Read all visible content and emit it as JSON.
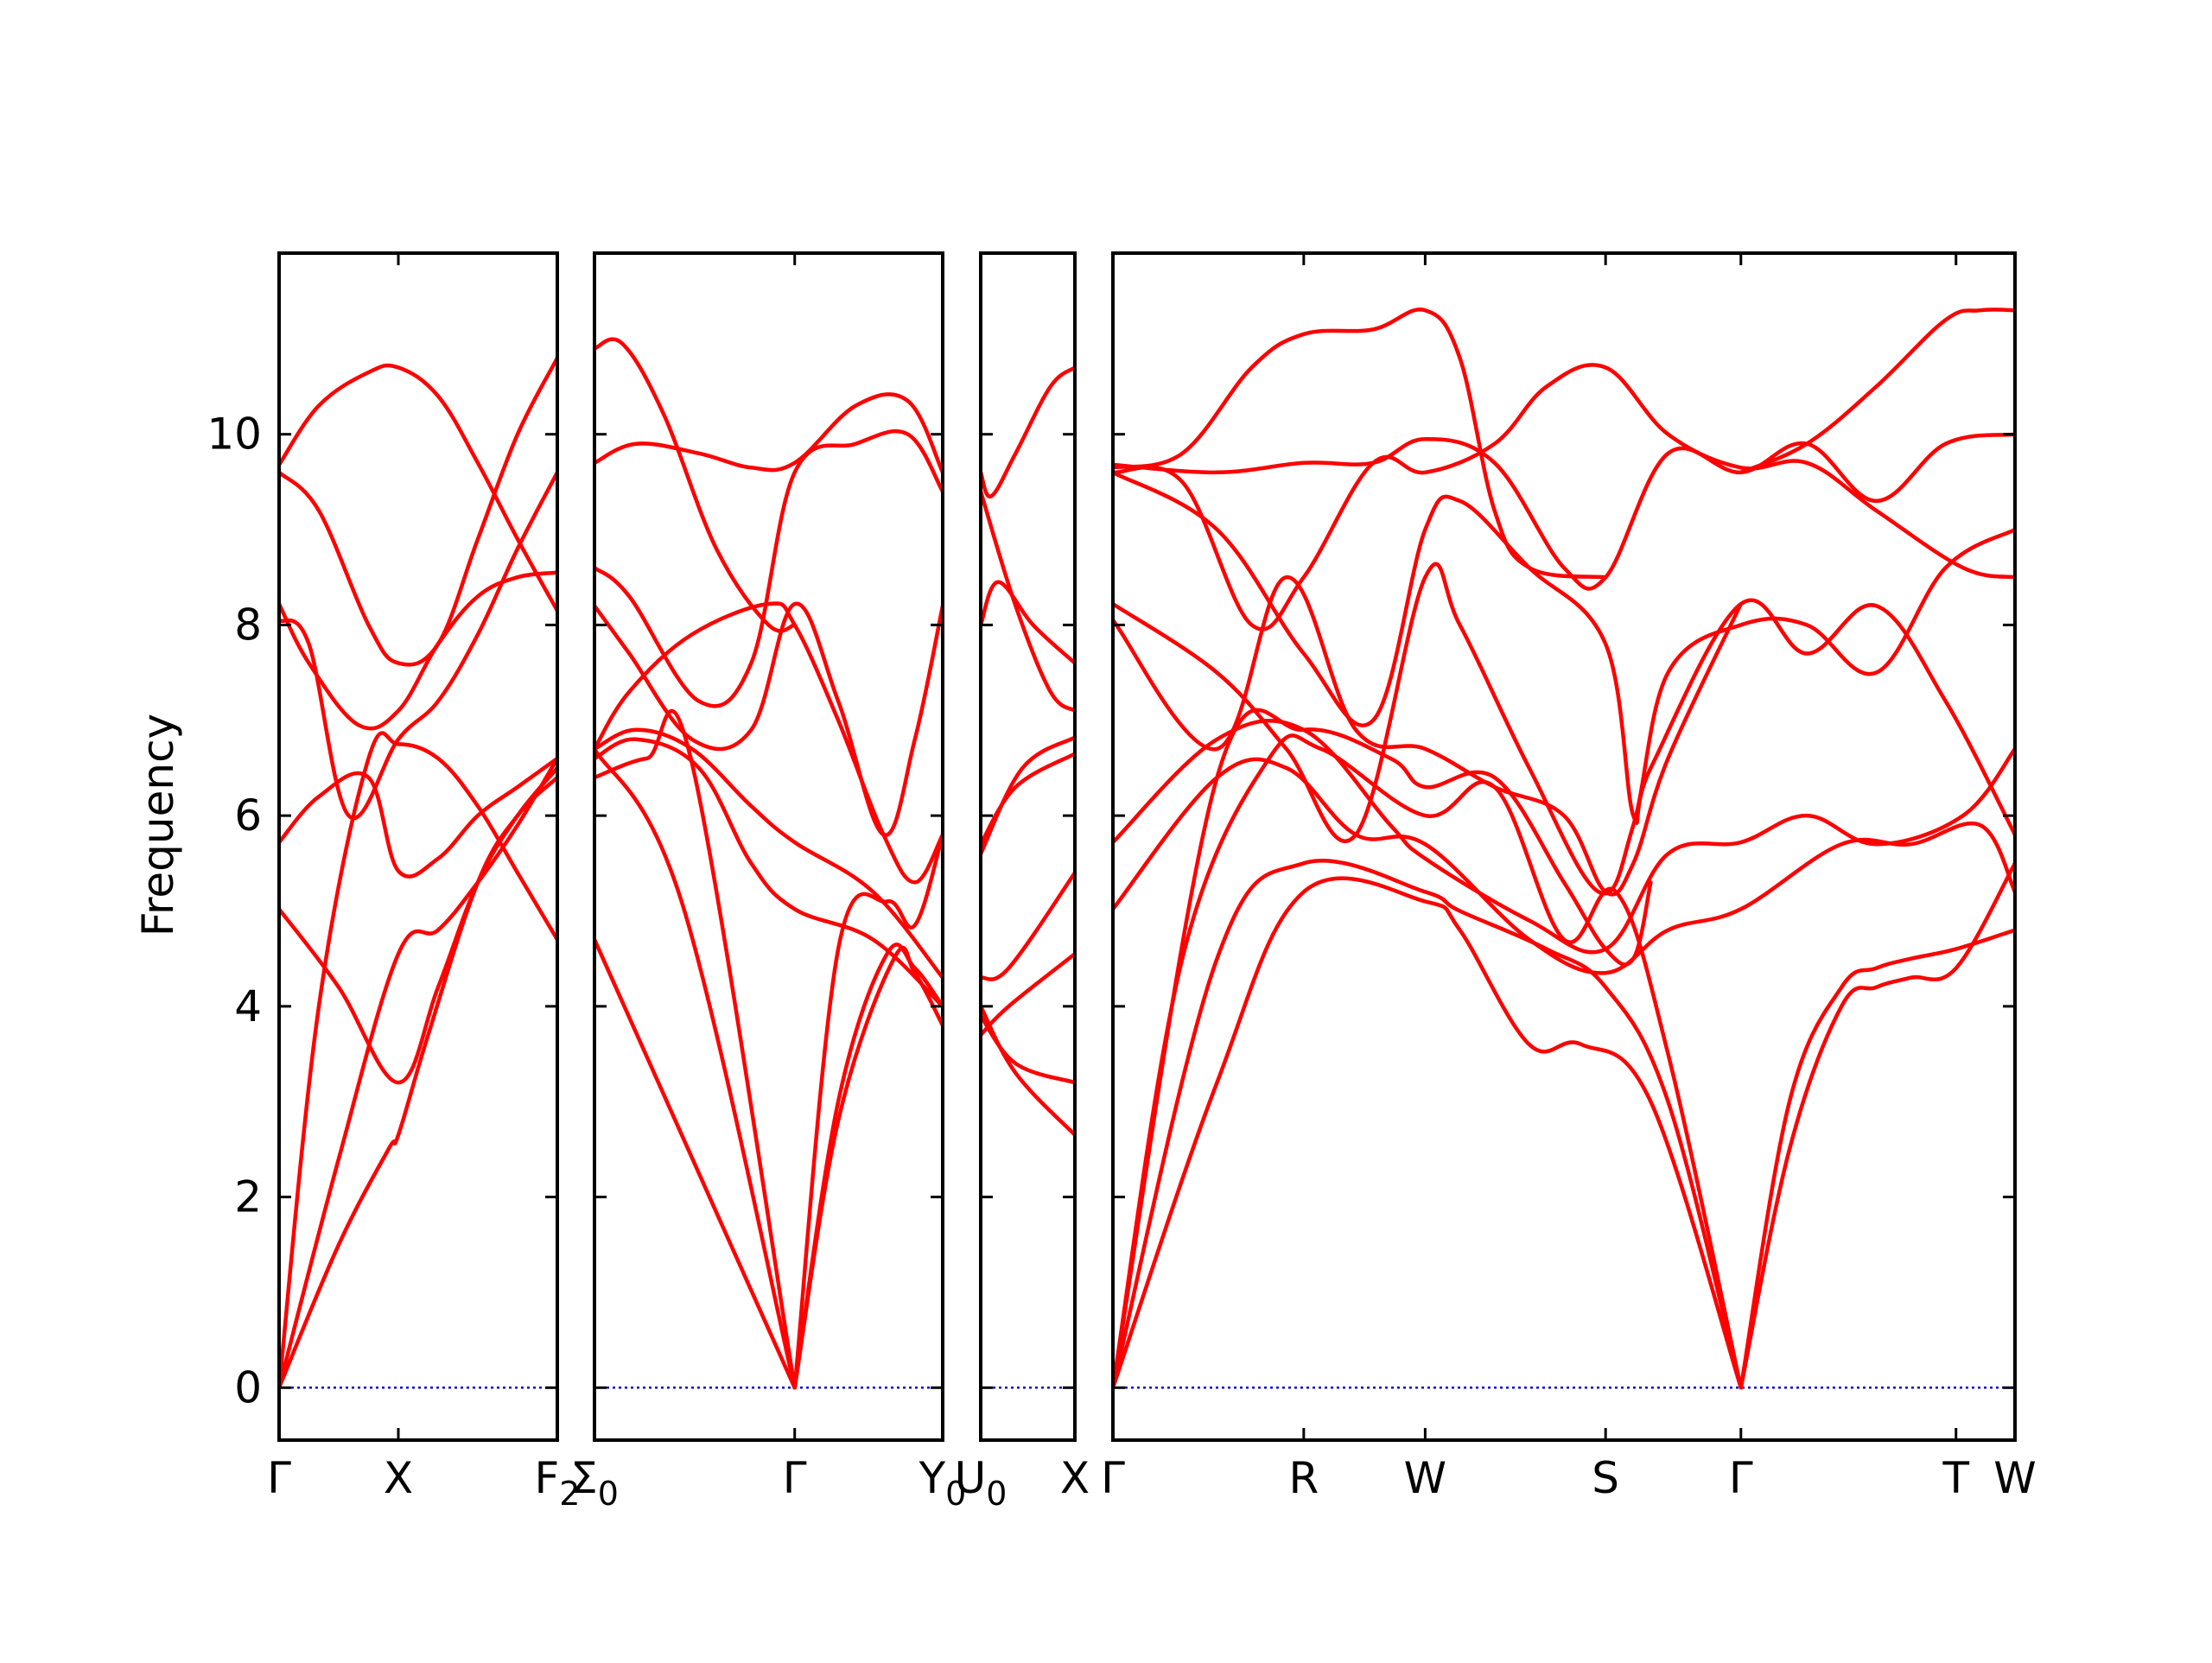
{
  "chart_data": {
    "type": "line",
    "title": "",
    "ylabel": "Frequency",
    "ylim": [
      -0.55,
      11.9
    ],
    "yticks": [
      0,
      2,
      4,
      6,
      8,
      10
    ],
    "colors": {
      "band": "#ff0000",
      "zero": "#0000cc"
    },
    "grid": false,
    "panels": [
      {
        "xlim": [
          0,
          1.4
        ],
        "xticks": [
          {
            "x": 0,
            "label": "Γ"
          },
          {
            "x": 0.6,
            "label": "X"
          },
          {
            "x": 1.4,
            "label": "F",
            "sub": "2"
          }
        ],
        "series": [
          {
            "x": [
              0,
              0.3,
              0.55,
              0.6,
              0.75,
              1.0,
              1.2,
              1.4
            ],
            "y": [
              0,
              1.5,
              2.5,
              2.65,
              3.7,
              5.3,
              6.0,
              6.4
            ]
          },
          {
            "x": [
              0,
              0.3,
              0.6,
              0.8,
              1.0,
              1.2,
              1.4
            ],
            "y": [
              0,
              2.4,
              4.55,
              4.8,
              5.3,
              5.9,
              6.6
            ]
          },
          {
            "x": [
              0,
              0.2,
              0.45,
              0.6,
              0.8,
              1.0,
              1.2,
              1.4
            ],
            "y": [
              0,
              4.0,
              6.6,
              6.75,
              6.6,
              6.1,
              5.4,
              4.7
            ]
          },
          {
            "x": [
              0,
              0.3,
              0.6,
              0.8,
              1.0,
              1.2,
              1.4
            ],
            "y": [
              5.02,
              4.2,
              3.2,
              4.2,
              5.3,
              6.0,
              6.5
            ]
          },
          {
            "x": [
              0,
              0.2,
              0.45,
              0.6,
              0.8,
              1.0,
              1.2,
              1.4
            ],
            "y": [
              5.72,
              6.2,
              6.4,
              5.42,
              5.55,
              6.0,
              6.3,
              6.6
            ]
          },
          {
            "x": [
              0,
              0.15,
              0.35,
              0.6,
              0.8,
              1.0,
              1.2,
              1.4
            ],
            "y": [
              8.05,
              7.8,
              6.0,
              6.8,
              7.2,
              7.9,
              8.8,
              9.6
            ]
          },
          {
            "x": [
              0,
              0.15,
              0.4,
              0.6,
              0.8,
              1.0,
              1.2,
              1.4
            ],
            "y": [
              8.22,
              7.6,
              6.95,
              7.1,
              7.8,
              8.3,
              8.5,
              8.55
            ]
          },
          {
            "x": [
              0,
              0.2,
              0.45,
              0.6,
              0.8,
              1.0,
              1.2,
              1.4
            ],
            "y": [
              9.6,
              9.2,
              8.0,
              7.6,
              7.8,
              8.9,
              10.0,
              10.8
            ]
          },
          {
            "x": [
              0,
              0.2,
              0.45,
              0.6,
              0.8,
              1.0,
              1.2,
              1.4
            ],
            "y": [
              9.68,
              10.3,
              10.65,
              10.7,
              10.4,
              9.7,
              8.9,
              8.15
            ]
          }
        ]
      },
      {
        "xlim": [
          0,
          1.0
        ],
        "xticks": [
          {
            "x": 0,
            "label": "Σ",
            "sub": "0"
          },
          {
            "x": 0.575,
            "label": "Γ"
          },
          {
            "x": 1.0,
            "label": "Y",
            "sub": "0"
          }
        ],
        "series": [
          {
            "x": [
              0,
              0.575
            ],
            "y": [
              4.7,
              0
            ]
          },
          {
            "x": [
              0,
              0.25,
              0.575
            ],
            "y": [
              6.7,
              5.1,
              0
            ]
          },
          {
            "x": [
              0,
              0.15,
              0.28,
              0.575
            ],
            "y": [
              6.4,
              6.6,
              6.55,
              0
            ]
          },
          {
            "x": [
              0.575,
              0.7,
              0.86,
              0.92,
              1.0
            ],
            "y": [
              0,
              2.8,
              4.5,
              4.35,
              3.8
            ]
          },
          {
            "x": [
              0.575,
              0.7,
              0.84,
              0.92,
              1.0
            ],
            "y": [
              0,
              3.0,
              4.55,
              4.4,
              4.0
            ]
          },
          {
            "x": [
              0.575,
              0.7,
              0.84,
              0.92,
              1.0
            ],
            "y": [
              0,
              4.6,
              5.1,
              4.85,
              5.8
            ]
          },
          {
            "x": [
              0,
              0.12,
              0.3,
              0.45,
              0.575,
              0.8,
              1.0
            ],
            "y": [
              6.6,
              6.8,
              6.5,
              5.5,
              5.02,
              4.7,
              4.0
            ]
          },
          {
            "x": [
              0,
              0.12,
              0.28,
              0.45,
              0.575,
              0.8,
              1.0
            ],
            "y": [
              6.7,
              6.9,
              6.7,
              6.1,
              5.72,
              5.2,
              4.3
            ]
          },
          {
            "x": [
              0,
              0.1,
              0.28,
              0.5,
              0.575,
              0.7,
              0.83,
              0.92,
              1.0
            ],
            "y": [
              6.7,
              7.3,
              7.9,
              8.22,
              8.0,
              7.0,
              5.8,
              5.3,
              5.8
            ]
          },
          {
            "x": [
              0,
              0.1,
              0.28,
              0.45,
              0.575,
              0.7,
              0.83,
              0.92,
              1.0
            ],
            "y": [
              8.2,
              7.7,
              6.8,
              6.9,
              8.22,
              7.2,
              5.8,
              6.8,
              8.2
            ]
          },
          {
            "x": [
              0,
              0.1,
              0.3,
              0.45,
              0.575,
              0.75,
              0.9,
              1.0
            ],
            "y": [
              8.6,
              8.3,
              7.2,
              7.6,
              9.6,
              9.9,
              10.0,
              9.4
            ]
          },
          {
            "x": [
              0,
              0.12,
              0.3,
              0.45,
              0.575,
              0.75,
              0.9,
              1.0
            ],
            "y": [
              9.7,
              9.9,
              9.8,
              9.65,
              9.7,
              10.3,
              10.35,
              9.6
            ]
          },
          {
            "x": [
              0,
              0.08,
              0.2,
              0.35,
              0.5,
              0.575
            ],
            "y": [
              10.9,
              10.95,
              10.2,
              8.8,
              8.0,
              8.0
            ]
          }
        ]
      },
      {
        "xlim": [
          0,
          0.27
        ],
        "xticks": [
          {
            "x": 0,
            "label": "U",
            "sub": "0"
          },
          {
            "x": 0.27,
            "label": "X"
          }
        ],
        "series": [
          {
            "x": [
              0,
              0.1,
              0.27
            ],
            "y": [
              4.0,
              3.3,
              2.65
            ]
          },
          {
            "x": [
              0,
              0.1,
              0.27
            ],
            "y": [
              3.9,
              3.4,
              3.2
            ]
          },
          {
            "x": [
              0,
              0.08,
              0.27
            ],
            "y": [
              3.7,
              4.0,
              4.55
            ]
          },
          {
            "x": [
              0,
              0.08,
              0.27
            ],
            "y": [
              4.3,
              4.4,
              5.4
            ]
          },
          {
            "x": [
              0,
              0.1,
              0.27
            ],
            "y": [
              5.7,
              6.3,
              6.65
            ]
          },
          {
            "x": [
              0,
              0.12,
              0.27
            ],
            "y": [
              5.6,
              6.5,
              6.82
            ]
          },
          {
            "x": [
              0,
              0.1,
              0.2,
              0.27
            ],
            "y": [
              9.4,
              8.2,
              7.3,
              7.1
            ]
          },
          {
            "x": [
              0,
              0.05,
              0.15,
              0.27
            ],
            "y": [
              8.0,
              8.45,
              8.0,
              7.6
            ]
          },
          {
            "x": [
              0,
              0.03,
              0.1,
              0.2,
              0.27
            ],
            "y": [
              9.6,
              9.35,
              9.8,
              10.5,
              10.7
            ]
          }
        ]
      },
      {
        "xlim": [
          0,
          2.6
        ],
        "xticks": [
          {
            "x": 0,
            "label": "Γ"
          },
          {
            "x": 0.55,
            "label": "R"
          },
          {
            "x": 0.9,
            "label": "W"
          },
          {
            "x": 1.42,
            "label": "S"
          },
          {
            "x": 1.81,
            "label": "Γ"
          },
          {
            "x": 2.43,
            "label": "T"
          },
          {
            "x": 2.6,
            "label": "W"
          }
        ],
        "series": [
          {
            "x": [
              0,
              0.3,
              0.55,
              0.9,
              1.0,
              1.2,
              1.35,
              1.55,
              1.81
            ],
            "y": [
              0,
              3.2,
              5.2,
              5.1,
              4.8,
              3.6,
              3.6,
              3.0,
              0
            ]
          },
          {
            "x": [
              0,
              0.3,
              0.55,
              0.9,
              1.0,
              1.25,
              1.42,
              1.6,
              1.81
            ],
            "y": [
              0,
              4.5,
              5.5,
              5.2,
              5.0,
              4.6,
              4.2,
              3.0,
              0
            ]
          },
          {
            "x": [
              0,
              0.2,
              0.45,
              0.6,
              0.9,
              1.1,
              1.3,
              1.45,
              1.6,
              1.81
            ],
            "y": [
              0,
              4.5,
              6.6,
              6.7,
              6.0,
              6.3,
              4.7,
              5.2,
              3.5,
              0
            ]
          },
          {
            "x": [
              0,
              0.3,
              0.55,
              0.8,
              0.9,
              1.1,
              1.3,
              1.42,
              1.5,
              1.55
            ],
            "y": [
              0,
              6.4,
              6.9,
              6.6,
              6.3,
              6.4,
              5.3,
              4.6,
              4.5,
              5.3
            ]
          },
          {
            "x": [
              0,
              0.3,
              0.5,
              0.7,
              0.9,
              1.2,
              1.42,
              1.6,
              1.81,
              2.1,
              2.3,
              2.5,
              2.6
            ],
            "y": [
              5.02,
              6.4,
              6.5,
              5.8,
              5.7,
              4.7,
              4.35,
              4.8,
              5.02,
              5.7,
              5.7,
              5.9,
              5.2
            ]
          },
          {
            "x": [
              0,
              0.3,
              0.55,
              0.8,
              0.9,
              1.2,
              1.42,
              1.6,
              1.81,
              2.0,
              2.2,
              2.45,
              2.6
            ],
            "y": [
              5.72,
              6.8,
              6.9,
              5.9,
              5.55,
              4.9,
              4.6,
              5.6,
              5.72,
              6.0,
              5.7,
              6.0,
              6.7
            ]
          },
          {
            "x": [
              0,
              0.3,
              0.5,
              0.7,
              0.9,
              1.1,
              1.3,
              1.42,
              1.5,
              1.6,
              1.81
            ],
            "y": [
              8.05,
              6.7,
              8.5,
              6.9,
              6.7,
              6.3,
              6.0,
              5.2,
              5.5,
              6.6,
              8.22
            ]
          },
          {
            "x": [
              0,
              0.3,
              0.5,
              0.7,
              0.9,
              1.0,
              1.2,
              1.4,
              1.5,
              1.6,
              1.81,
              2.0,
              2.2,
              2.4,
              2.6
            ],
            "y": [
              8.22,
              7.5,
              6.7,
              5.8,
              8.5,
              8.0,
              6.5,
              5.2,
              5.9,
              7.5,
              8.0,
              8.0,
              7.5,
              8.6,
              9.0
            ]
          },
          {
            "x": [
              0,
              0.3,
              0.55,
              0.75,
              0.9,
              1.0,
              1.2,
              1.42,
              1.5,
              1.55,
              1.81,
              2.0,
              2.2,
              2.4,
              2.6
            ],
            "y": [
              9.6,
              9.0,
              7.7,
              7.0,
              9.0,
              9.3,
              8.6,
              7.8,
              6.0,
              6.5,
              8.22,
              7.7,
              8.2,
              7.2,
              5.8
            ]
          },
          {
            "x": [
              0,
              0.3,
              0.55,
              0.75,
              0.9,
              1.1,
              1.3,
              1.42,
              1.6,
              1.81,
              2.0,
              2.2,
              2.4,
              2.6
            ],
            "y": [
              9.68,
              9.6,
              9.7,
              9.7,
              9.95,
              9.7,
              8.6,
              8.5,
              9.8,
              9.6,
              9.9,
              9.3,
              9.9,
              10.0
            ]
          },
          {
            "x": [
              0,
              0.2,
              0.4,
              0.55,
              0.75,
              0.9,
              1.1,
              1.25,
              1.42,
              1.6,
              1.81,
              2.0,
              2.2,
              2.45,
              2.6
            ],
            "y": [
              9.6,
              9.5,
              8.0,
              8.5,
              9.7,
              9.6,
              9.9,
              10.5,
              10.7,
              10.0,
              9.65,
              9.7,
              9.2,
              8.6,
              8.5
            ]
          },
          {
            "x": [
              0,
              0.2,
              0.4,
              0.55,
              0.75,
              0.9,
              1.0,
              1.1,
              1.2,
              1.42
            ],
            "y": [
              9.65,
              9.8,
              10.7,
              11.05,
              11.1,
              11.3,
              10.8,
              9.2,
              8.6,
              8.5
            ]
          },
          {
            "x": [
              1.81,
              1.95,
              2.1,
              2.2,
              2.3,
              2.43,
              2.6
            ],
            "y": [
              0,
              3.0,
              4.2,
              4.4,
              4.5,
              4.6,
              4.8
            ]
          },
          {
            "x": [
              1.81,
              1.95,
              2.1,
              2.2,
              2.3,
              2.43,
              2.6
            ],
            "y": [
              0,
              2.5,
              4.0,
              4.2,
              4.3,
              4.4,
              5.5
            ]
          },
          {
            "x": [
              1.81,
              2.0,
              2.2,
              2.4,
              2.5,
              2.6
            ],
            "y": [
              9.6,
              9.9,
              10.5,
              11.2,
              11.3,
              11.3
            ]
          }
        ]
      }
    ]
  }
}
